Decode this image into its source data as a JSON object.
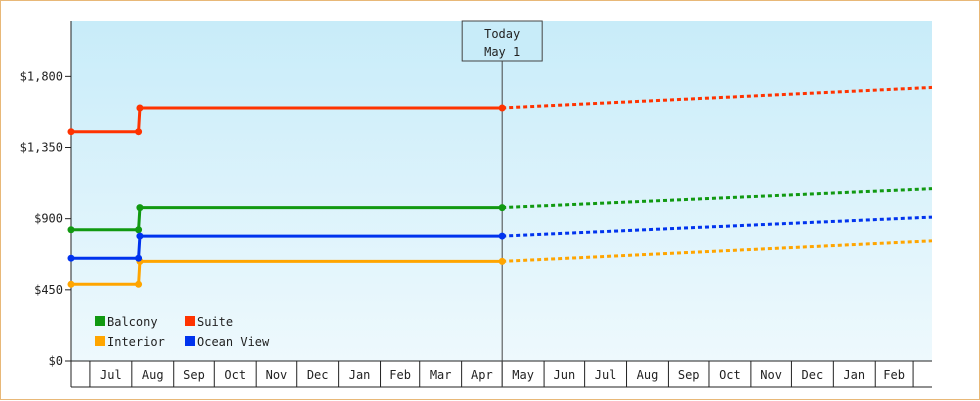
{
  "chart_data": {
    "type": "line",
    "title": "",
    "xlabel": "",
    "ylabel": "",
    "ylim": [
      0,
      2150
    ],
    "y_ticks": [
      {
        "value": 0,
        "label": "$0"
      },
      {
        "value": 450,
        "label": "$450"
      },
      {
        "value": 900,
        "label": "$900"
      },
      {
        "value": 1350,
        "label": "$1,350"
      },
      {
        "value": 1800,
        "label": "$1,800"
      }
    ],
    "x_start": "2023-06-17",
    "x_end": "2025-03-15",
    "x_ticks": [
      {
        "label": "Jul",
        "start": "2023-07-01",
        "end": "2023-08-01"
      },
      {
        "label": "Aug",
        "start": "2023-08-01",
        "end": "2023-09-01"
      },
      {
        "label": "Sep",
        "start": "2023-09-01",
        "end": "2023-10-01"
      },
      {
        "label": "Oct",
        "start": "2023-10-01",
        "end": "2023-11-01"
      },
      {
        "label": "Nov",
        "start": "2023-11-01",
        "end": "2023-12-01"
      },
      {
        "label": "Dec",
        "start": "2023-12-01",
        "end": "2024-01-01"
      },
      {
        "label": "Jan",
        "start": "2024-01-01",
        "end": "2024-02-01"
      },
      {
        "label": "Feb",
        "start": "2024-02-01",
        "end": "2024-03-01"
      },
      {
        "label": "Mar",
        "start": "2024-03-01",
        "end": "2024-04-01"
      },
      {
        "label": "Apr",
        "start": "2024-04-01",
        "end": "2024-05-01"
      },
      {
        "label": "May",
        "start": "2024-05-01",
        "end": "2024-06-01"
      },
      {
        "label": "Jun",
        "start": "2024-06-01",
        "end": "2024-07-01"
      },
      {
        "label": "Jul",
        "start": "2024-07-01",
        "end": "2024-08-01"
      },
      {
        "label": "Aug",
        "start": "2024-08-01",
        "end": "2024-09-01"
      },
      {
        "label": "Sep",
        "start": "2024-09-01",
        "end": "2024-10-01"
      },
      {
        "label": "Oct",
        "start": "2024-10-01",
        "end": "2024-11-01"
      },
      {
        "label": "Nov",
        "start": "2024-11-01",
        "end": "2024-12-01"
      },
      {
        "label": "Dec",
        "start": "2024-12-01",
        "end": "2025-01-01"
      },
      {
        "label": "Jan",
        "start": "2025-01-01",
        "end": "2025-02-01"
      },
      {
        "label": "Feb",
        "start": "2025-02-01",
        "end": "2025-03-01"
      }
    ],
    "today": {
      "date": "2024-05-01",
      "label_line1": "Today",
      "label_line2": "May 1"
    },
    "series": [
      {
        "name": "Balcony",
        "color": "#119911",
        "history": [
          [
            "2023-06-17",
            830
          ],
          [
            "2023-08-06",
            830
          ],
          [
            "2023-08-07",
            970
          ],
          [
            "2024-05-01",
            970
          ]
        ],
        "forecast": [
          [
            "2024-05-01",
            970
          ],
          [
            "2025-03-15",
            1090
          ]
        ]
      },
      {
        "name": "Suite",
        "color": "#ff3300",
        "history": [
          [
            "2023-06-17",
            1450
          ],
          [
            "2023-08-06",
            1450
          ],
          [
            "2023-08-07",
            1600
          ],
          [
            "2024-05-01",
            1600
          ]
        ],
        "forecast": [
          [
            "2024-05-01",
            1600
          ],
          [
            "2025-03-15",
            1730
          ]
        ]
      },
      {
        "name": "Interior",
        "color": "#ffa500",
        "history": [
          [
            "2023-06-17",
            485
          ],
          [
            "2023-08-06",
            485
          ],
          [
            "2023-08-07",
            630
          ],
          [
            "2024-05-01",
            630
          ]
        ],
        "forecast": [
          [
            "2024-05-01",
            630
          ],
          [
            "2025-03-15",
            760
          ]
        ]
      },
      {
        "name": "Ocean View",
        "color": "#0033ee",
        "history": [
          [
            "2023-06-17",
            650
          ],
          [
            "2023-08-06",
            650
          ],
          [
            "2023-08-07",
            790
          ],
          [
            "2024-05-01",
            790
          ]
        ],
        "forecast": [
          [
            "2024-05-01",
            790
          ],
          [
            "2025-03-15",
            910
          ]
        ]
      }
    ],
    "legend": {
      "position": "bottom-left",
      "order": [
        "Balcony",
        "Suite",
        "Interior",
        "Ocean View"
      ]
    },
    "grid": false
  }
}
